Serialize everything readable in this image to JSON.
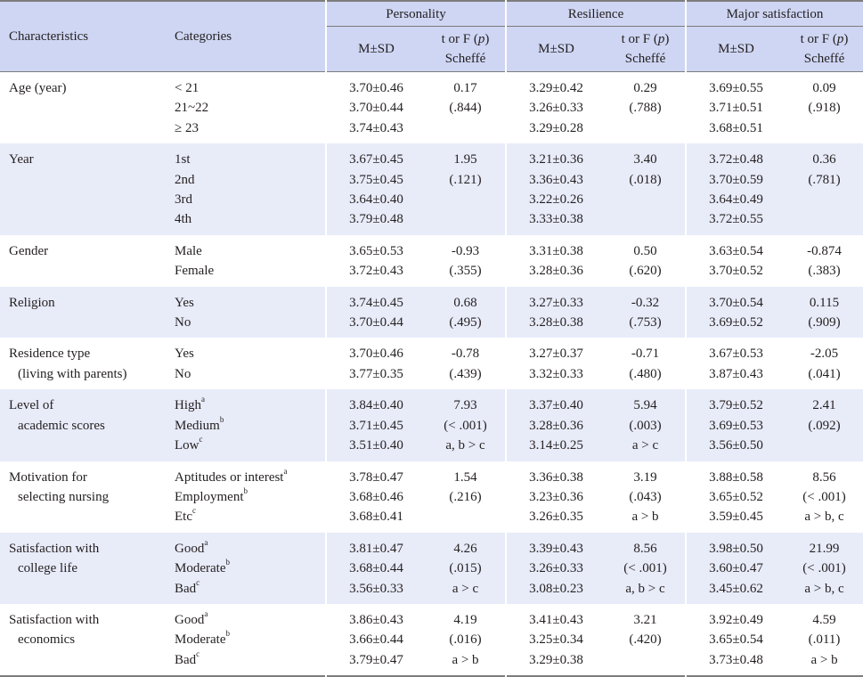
{
  "header": {
    "characteristics": "Characteristics",
    "categories": "Categories",
    "groups": [
      "Personality",
      "Resilience",
      "Major satisfaction"
    ],
    "msd": "M±SD",
    "test_line1_prefix": "t or F (",
    "test_line1_italic": "p",
    "test_line1_suffix": ")",
    "test_line2": "Scheffé"
  },
  "rows": [
    {
      "char": [
        "Age (year)"
      ],
      "cats": [
        {
          "t": "< 21",
          "s": ""
        },
        {
          "t": "21~22",
          "s": ""
        },
        {
          "t": "≥ 23",
          "s": ""
        }
      ],
      "p_msd": [
        "3.70±0.46",
        "3.70±0.44",
        "3.74±0.43"
      ],
      "p_t": [
        "0.17",
        "(.844)"
      ],
      "r_msd": [
        "3.29±0.42",
        "3.26±0.33",
        "3.29±0.28"
      ],
      "r_t": [
        "0.29",
        "(.788)"
      ],
      "m_msd": [
        "3.69±0.55",
        "3.71±0.51",
        "3.68±0.51"
      ],
      "m_t": [
        "0.09",
        "(.918)"
      ]
    },
    {
      "char": [
        "Year"
      ],
      "cats": [
        {
          "t": "1st",
          "s": ""
        },
        {
          "t": "2nd",
          "s": ""
        },
        {
          "t": "3rd",
          "s": ""
        },
        {
          "t": "4th",
          "s": ""
        }
      ],
      "p_msd": [
        "3.67±0.45",
        "3.75±0.45",
        "3.64±0.40",
        "3.79±0.48"
      ],
      "p_t": [
        "1.95",
        "(.121)"
      ],
      "r_msd": [
        "3.21±0.36",
        "3.36±0.43",
        "3.22±0.26",
        "3.33±0.38"
      ],
      "r_t": [
        "3.40",
        "(.018)"
      ],
      "m_msd": [
        "3.72±0.48",
        "3.70±0.59",
        "3.64±0.49",
        "3.72±0.55"
      ],
      "m_t": [
        "0.36",
        "(.781)"
      ]
    },
    {
      "char": [
        "Gender"
      ],
      "cats": [
        {
          "t": "Male",
          "s": ""
        },
        {
          "t": "Female",
          "s": ""
        }
      ],
      "p_msd": [
        "3.65±0.53",
        "3.72±0.43"
      ],
      "p_t": [
        "-0.93",
        "(.355)"
      ],
      "r_msd": [
        "3.31±0.38",
        "3.28±0.36"
      ],
      "r_t": [
        "0.50",
        "(.620)"
      ],
      "m_msd": [
        "3.63±0.54",
        "3.70±0.52"
      ],
      "m_t": [
        "-0.874",
        "(.383)"
      ]
    },
    {
      "char": [
        "Religion"
      ],
      "cats": [
        {
          "t": "Yes",
          "s": ""
        },
        {
          "t": "No",
          "s": ""
        }
      ],
      "p_msd": [
        "3.74±0.45",
        "3.70±0.44"
      ],
      "p_t": [
        "0.68",
        "(.495)"
      ],
      "r_msd": [
        "3.27±0.33",
        "3.28±0.38"
      ],
      "r_t": [
        "-0.32",
        "(.753)"
      ],
      "m_msd": [
        "3.70±0.54",
        "3.69±0.52"
      ],
      "m_t": [
        "0.115",
        "(.909)"
      ]
    },
    {
      "char": [
        "Residence type",
        "(living with parents)"
      ],
      "cats": [
        {
          "t": "Yes",
          "s": ""
        },
        {
          "t": "No",
          "s": ""
        }
      ],
      "p_msd": [
        "3.70±0.46",
        "3.77±0.35"
      ],
      "p_t": [
        "-0.78",
        "(.439)"
      ],
      "r_msd": [
        "3.27±0.37",
        "3.32±0.33"
      ],
      "r_t": [
        "-0.71",
        "(.480)"
      ],
      "m_msd": [
        "3.67±0.53",
        "3.87±0.43"
      ],
      "m_t": [
        "-2.05",
        "(.041)"
      ]
    },
    {
      "char": [
        "Level of",
        "academic scores"
      ],
      "cats": [
        {
          "t": "High",
          "s": "a"
        },
        {
          "t": "Medium",
          "s": "b"
        },
        {
          "t": "Low",
          "s": "c"
        }
      ],
      "p_msd": [
        "3.84±0.40",
        "3.71±0.45",
        "3.51±0.40"
      ],
      "p_t": [
        "7.93",
        "(< .001)",
        "a, b > c"
      ],
      "r_msd": [
        "3.37±0.40",
        "3.28±0.36",
        "3.14±0.25"
      ],
      "r_t": [
        "5.94",
        "(.003)",
        "a > c"
      ],
      "m_msd": [
        "3.79±0.52",
        "3.69±0.53",
        "3.56±0.50"
      ],
      "m_t": [
        "2.41",
        "(.092)"
      ]
    },
    {
      "char": [
        "Motivation for",
        "selecting nursing"
      ],
      "cats": [
        {
          "t": "Aptitudes or interest",
          "s": "a"
        },
        {
          "t": "Employment",
          "s": "b"
        },
        {
          "t": "Etc",
          "s": "c"
        }
      ],
      "p_msd": [
        "3.78±0.47",
        "3.68±0.46",
        "3.68±0.41"
      ],
      "p_t": [
        "1.54",
        "(.216)"
      ],
      "r_msd": [
        "3.36±0.38",
        "3.23±0.36",
        "3.26±0.35"
      ],
      "r_t": [
        "3.19",
        "(.043)",
        "a > b"
      ],
      "m_msd": [
        "3.88±0.58",
        "3.65±0.52",
        "3.59±0.45"
      ],
      "m_t": [
        "8.56",
        "(< .001)",
        "a > b, c"
      ]
    },
    {
      "char": [
        "Satisfaction with",
        "college life"
      ],
      "cats": [
        {
          "t": "Good",
          "s": "a"
        },
        {
          "t": "Moderate",
          "s": "b"
        },
        {
          "t": "Bad",
          "s": "c"
        }
      ],
      "p_msd": [
        "3.81±0.47",
        "3.68±0.44",
        "3.56±0.33"
      ],
      "p_t": [
        "4.26",
        "(.015)",
        "a > c"
      ],
      "r_msd": [
        "3.39±0.43",
        "3.26±0.33",
        "3.08±0.23"
      ],
      "r_t": [
        "8.56",
        "(< .001)",
        "a, b > c"
      ],
      "m_msd": [
        "3.98±0.50",
        "3.60±0.47",
        "3.45±0.62"
      ],
      "m_t": [
        "21.99",
        "(< .001)",
        "a > b, c"
      ]
    },
    {
      "char": [
        "Satisfaction with",
        "economics"
      ],
      "cats": [
        {
          "t": "Good",
          "s": "a"
        },
        {
          "t": "Moderate",
          "s": "b"
        },
        {
          "t": "Bad",
          "s": "c"
        }
      ],
      "p_msd": [
        "3.86±0.43",
        "3.66±0.44",
        "3.79±0.47"
      ],
      "p_t": [
        "4.19",
        "(.016)",
        "a > b"
      ],
      "r_msd": [
        "3.41±0.43",
        "3.25±0.34",
        "3.29±0.38"
      ],
      "r_t": [
        "3.21",
        "(.420)"
      ],
      "m_msd": [
        "3.92±0.49",
        "3.65±0.54",
        "3.73±0.48"
      ],
      "m_t": [
        "4.59",
        "(.011)",
        "a > b"
      ]
    }
  ]
}
